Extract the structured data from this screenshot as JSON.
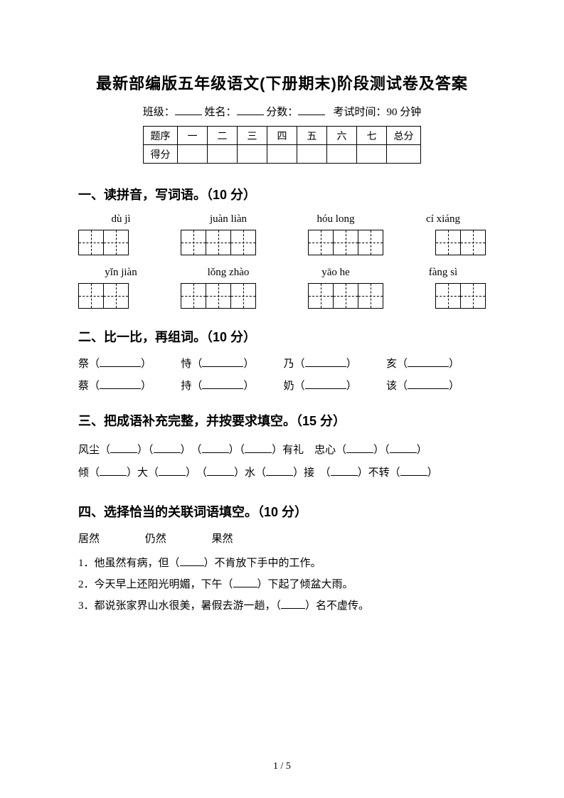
{
  "title": "最新部编版五年级语文(下册期末)阶段测试卷及答案",
  "info": {
    "class_label": "班级：",
    "name_label": "姓名：",
    "score_label": "分数：",
    "time_label": "考试时间：90 分钟"
  },
  "score_table": {
    "row1_label": "题序",
    "cols": [
      "一",
      "二",
      "三",
      "四",
      "五",
      "六",
      "七"
    ],
    "total_label": "总分",
    "row2_label": "得分"
  },
  "q1": {
    "title": "一、读拼音，写词语。（10 分）",
    "row1": [
      "dù  jì",
      "juàn liàn",
      "hóu long",
      "cí xiáng"
    ],
    "row2": [
      "yǐn jiàn",
      "lǒng zhào",
      "yāo he",
      "fàng sì"
    ],
    "cells": [
      2,
      3,
      3,
      2
    ]
  },
  "q2": {
    "title": "二、比一比，再组词。（10 分）",
    "row1": [
      "祭",
      "恃",
      "乃",
      "亥"
    ],
    "row2": [
      "蔡",
      "持",
      "奶",
      "该"
    ]
  },
  "q3": {
    "title": "三、把成语补充完整，并按要求填空。（15 分）",
    "line1_a": "风尘（",
    "line1_b": "）（",
    "line1_c": "）　（",
    "line1_d": "）（",
    "line1_e": "）有礼　忠心（",
    "line1_f": "）（",
    "line1_g": "）",
    "line2_a": "倾（",
    "line2_b": "）大（",
    "line2_c": "）　（",
    "line2_d": "）水（",
    "line2_e": "）接　（",
    "line2_f": "）不转（",
    "line2_g": "）"
  },
  "q4": {
    "title": "四、选择恰当的关联词语填空。（10 分）",
    "words": [
      "居然",
      "仍然",
      "果然"
    ],
    "line1_a": "1．他虽然有病，但（",
    "line1_b": "）不肯放下手中的工作。",
    "line2_a": "2．今天早上还阳光明媚，下午（",
    "line2_b": "）下起了倾盆大雨。",
    "line3_a": "3．都说张家界山水很美，暑假去游一趟，（",
    "line3_b": "）名不虚传。"
  },
  "page_number": "1  /  5"
}
